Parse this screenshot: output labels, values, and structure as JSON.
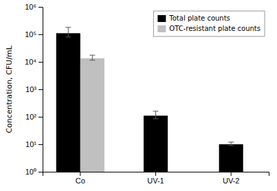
{
  "chart_data": {
    "type": "bar",
    "categories": [
      "Co",
      "UV-1",
      "UV-2"
    ],
    "series": [
      {
        "name": "Total plate counts",
        "color": "#000000",
        "values": [
          110000.0,
          110.0,
          10.0
        ],
        "err_low": [
          30000.0,
          25.0,
          1.0
        ],
        "err_high": [
          70000.0,
          50.0,
          2.0
        ]
      },
      {
        "name": "OTC-resistant plate counts",
        "color": "#c0c0c0",
        "values": [
          13500.0,
          null,
          null
        ],
        "err_low": [
          2000.0,
          null,
          null
        ],
        "err_high": [
          4000.0,
          null,
          null
        ]
      }
    ],
    "ylabel": "Concentration, CFU/mL",
    "log": "y",
    "ylim": [
      1,
      1000000
    ],
    "yticks": [
      {
        "value": 1,
        "label": "10⁰"
      },
      {
        "value": 10,
        "label": "10¹"
      },
      {
        "value": 100,
        "label": "10²"
      },
      {
        "value": 1000,
        "label": "10³"
      },
      {
        "value": 10000,
        "label": "10⁴"
      },
      {
        "value": 100000,
        "label": "10⁵"
      },
      {
        "value": 1000000,
        "label": "10⁶"
      }
    ],
    "grid": false,
    "legend": "upper right"
  }
}
